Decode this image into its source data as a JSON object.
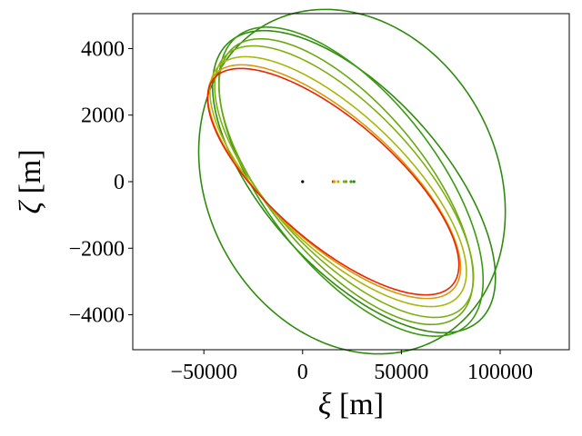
{
  "chart_data": {
    "type": "line",
    "title": "",
    "xlabel": {
      "symbol": "ξ",
      "unit": " [m]"
    },
    "ylabel": {
      "symbol": "ζ",
      "unit": " [m]"
    },
    "xlim": [
      -86000,
      135000
    ],
    "ylim": [
      -5050,
      5050
    ],
    "xticks": [
      -50000,
      0,
      50000,
      100000
    ],
    "xtick_labels": [
      "−50000",
      "0",
      "50000",
      "100000"
    ],
    "yticks": [
      -4000,
      -2000,
      0,
      2000,
      4000
    ],
    "ytick_labels": [
      "−4000",
      "−2000",
      "0",
      "2000",
      "4000"
    ],
    "grid": false,
    "legend": "none",
    "series": [
      {
        "color": "#2e8b0e",
        "center": [
          25000,
          0
        ],
        "ellipse": {
          "a": 102000,
          "b": 3400,
          "angle_deg": -28
        },
        "kind": "ellipse"
      },
      {
        "color": "#2e8b0e",
        "center": [
          26000,
          0
        ],
        "ellipse": {
          "a": 62000,
          "b": 3550,
          "angle_deg": -42
        },
        "kind": "ellipse"
      },
      {
        "color": "#3a9a10",
        "center": [
          24500,
          0
        ],
        "ellipse": {
          "a": 60000,
          "b": 3500,
          "angle_deg": -38
        },
        "kind": "ellipse"
      },
      {
        "color": "#6aa812",
        "center": [
          22000,
          0
        ],
        "ellipse": {
          "a": 54000,
          "b": 3320,
          "angle_deg": -40
        },
        "kind": "ellipse"
      },
      {
        "color": "#7fb010",
        "center": [
          21000,
          0
        ],
        "ellipse": {
          "a": 51000,
          "b": 3280,
          "angle_deg": -43
        },
        "kind": "ellipse"
      },
      {
        "color": "#a7b80a",
        "center": [
          18000,
          0
        ],
        "ellipse": {
          "a": 47000,
          "b": 3150,
          "angle_deg": -46
        },
        "kind": "ellipse"
      },
      {
        "color": "#d89a05",
        "center": [
          16000,
          0
        ],
        "ellipse": {
          "a": 44000,
          "b": 3040,
          "angle_deg": -48
        },
        "kind": "ellipse"
      },
      {
        "color": "#ee2200",
        "center": [
          15500,
          0
        ],
        "ellipse": {
          "a": 43000,
          "b": 2990,
          "angle_deg": -49
        },
        "kind": "ellipse"
      }
    ],
    "points": [
      {
        "x": 0,
        "y": 0,
        "color": "#000000"
      },
      {
        "x": 15500,
        "y": 0,
        "color": "#ee2200"
      },
      {
        "x": 16000,
        "y": 0,
        "color": "#d89a05"
      },
      {
        "x": 18000,
        "y": 0,
        "color": "#a7b80a"
      },
      {
        "x": 21000,
        "y": 0,
        "color": "#7fb010"
      },
      {
        "x": 22000,
        "y": 0,
        "color": "#6aa812"
      },
      {
        "x": 24500,
        "y": 0,
        "color": "#3a9a10"
      },
      {
        "x": 26000,
        "y": 0,
        "color": "#2e8b0e"
      }
    ]
  }
}
